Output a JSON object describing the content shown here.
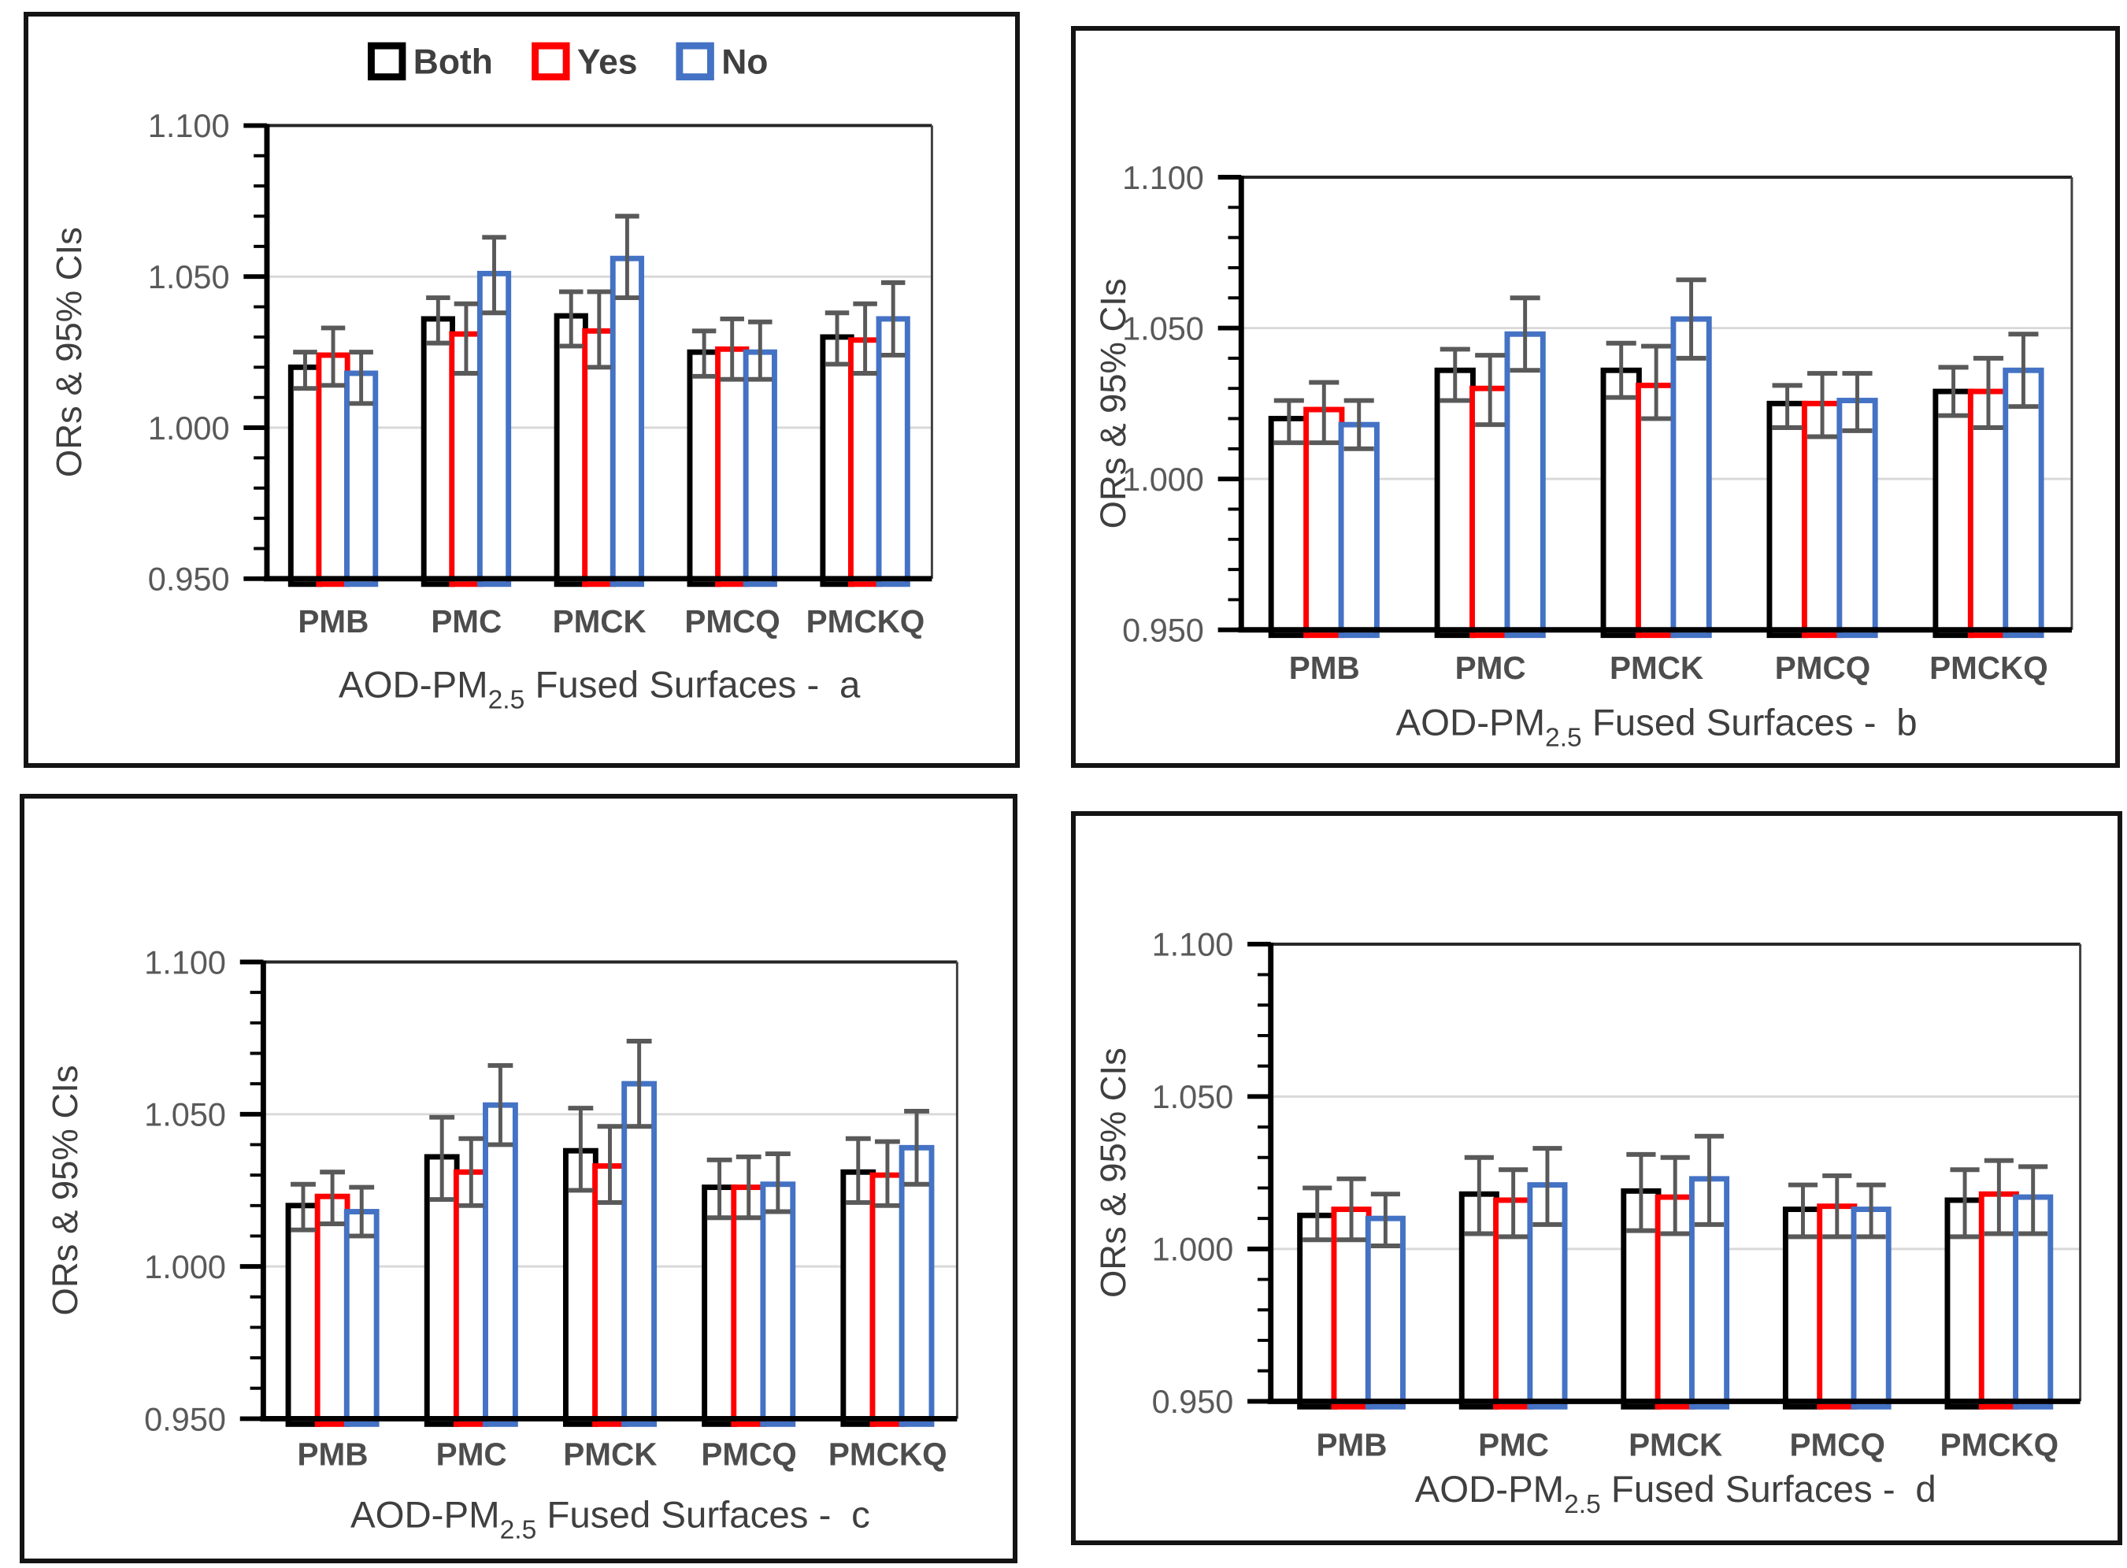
{
  "figure": {
    "ylabel": "ORs & 95% CIs",
    "xlabel_prefix": "AOD-PM",
    "xlabel_subscript": "2.5",
    "xlabel_suffix": "Fused Surfaces -",
    "categories": [
      "PMB",
      "PMC",
      "PMCK",
      "PMCQ",
      "PMCKQ"
    ],
    "ytick_labels": [
      "0.950",
      "1.000",
      "1.050",
      "1.100"
    ],
    "legend": {
      "entries": [
        {
          "label": "Both",
          "color": "#000000"
        },
        {
          "label": "Yes",
          "color": "#FF0000"
        },
        {
          "label": "No",
          "color": "#4472C4"
        }
      ]
    },
    "colors": {
      "both": "#000000",
      "yes": "#FF0000",
      "no": "#4472C4",
      "error_bar": "#595959",
      "gridline": "#D9D9D9",
      "tick_text": "#595959",
      "label_text": "#4d4d4d",
      "title_text": "#3f3f3f"
    }
  },
  "chart_data": [
    {
      "type": "bar",
      "panel_label": "a",
      "ylabel": "ORs & 95% CIs",
      "xlabel_prefix": "AOD-PM",
      "xlabel_subscript": "2.5",
      "xlabel_suffix": "Fused Surfaces -",
      "categories": [
        "PMB",
        "PMC",
        "PMCK",
        "PMCQ",
        "PMCKQ"
      ],
      "ylim": [
        0.95,
        1.1
      ],
      "yticks": [
        0.95,
        1.0,
        1.05,
        1.1
      ],
      "minor_tick_step": 0.01,
      "grid": true,
      "show_legend": true,
      "legend_position": "top",
      "series": [
        {
          "name": "Both",
          "color": "#000000",
          "values": [
            1.02,
            1.036,
            1.037,
            1.025,
            1.03
          ],
          "ci_low": [
            1.013,
            1.028,
            1.027,
            1.017,
            1.021
          ],
          "ci_high": [
            1.025,
            1.043,
            1.045,
            1.032,
            1.038
          ]
        },
        {
          "name": "Yes",
          "color": "#FF0000",
          "values": [
            1.024,
            1.031,
            1.032,
            1.026,
            1.029
          ],
          "ci_low": [
            1.014,
            1.018,
            1.02,
            1.016,
            1.018
          ],
          "ci_high": [
            1.033,
            1.041,
            1.045,
            1.036,
            1.041
          ]
        },
        {
          "name": "No",
          "color": "#4472C4",
          "values": [
            1.018,
            1.051,
            1.056,
            1.025,
            1.036
          ],
          "ci_low": [
            1.008,
            1.038,
            1.043,
            1.016,
            1.024
          ],
          "ci_high": [
            1.025,
            1.063,
            1.07,
            1.035,
            1.048
          ]
        }
      ]
    },
    {
      "type": "bar",
      "panel_label": "b",
      "ylabel": "ORs & 95% CIs",
      "xlabel_prefix": "AOD-PM",
      "xlabel_subscript": "2.5",
      "xlabel_suffix": "Fused Surfaces -",
      "categories": [
        "PMB",
        "PMC",
        "PMCK",
        "PMCQ",
        "PMCKQ"
      ],
      "ylim": [
        0.95,
        1.1
      ],
      "yticks": [
        0.95,
        1.0,
        1.05,
        1.1
      ],
      "minor_tick_step": 0.01,
      "grid": true,
      "show_legend": false,
      "series": [
        {
          "name": "Both",
          "color": "#000000",
          "values": [
            1.02,
            1.036,
            1.036,
            1.025,
            1.029
          ],
          "ci_low": [
            1.012,
            1.026,
            1.027,
            1.017,
            1.021
          ],
          "ci_high": [
            1.026,
            1.043,
            1.045,
            1.031,
            1.037
          ]
        },
        {
          "name": "Yes",
          "color": "#FF0000",
          "values": [
            1.023,
            1.03,
            1.031,
            1.025,
            1.029
          ],
          "ci_low": [
            1.012,
            1.018,
            1.02,
            1.014,
            1.017
          ],
          "ci_high": [
            1.032,
            1.041,
            1.044,
            1.035,
            1.04
          ]
        },
        {
          "name": "No",
          "color": "#4472C4",
          "values": [
            1.018,
            1.048,
            1.053,
            1.026,
            1.036
          ],
          "ci_low": [
            1.01,
            1.036,
            1.04,
            1.016,
            1.024
          ],
          "ci_high": [
            1.026,
            1.06,
            1.066,
            1.035,
            1.048
          ]
        }
      ]
    },
    {
      "type": "bar",
      "panel_label": "c",
      "ylabel": "ORs & 95% CIs",
      "xlabel_prefix": "AOD-PM",
      "xlabel_subscript": "2.5",
      "xlabel_suffix": "Fused Surfaces -",
      "categories": [
        "PMB",
        "PMC",
        "PMCK",
        "PMCQ",
        "PMCKQ"
      ],
      "ylim": [
        0.95,
        1.1
      ],
      "yticks": [
        0.95,
        1.0,
        1.05,
        1.1
      ],
      "minor_tick_step": 0.01,
      "grid": true,
      "show_legend": false,
      "series": [
        {
          "name": "Both",
          "color": "#000000",
          "values": [
            1.02,
            1.036,
            1.038,
            1.026,
            1.031
          ],
          "ci_low": [
            1.012,
            1.022,
            1.025,
            1.016,
            1.021
          ],
          "ci_high": [
            1.027,
            1.049,
            1.052,
            1.035,
            1.042
          ]
        },
        {
          "name": "Yes",
          "color": "#FF0000",
          "values": [
            1.023,
            1.031,
            1.033,
            1.026,
            1.03
          ],
          "ci_low": [
            1.014,
            1.02,
            1.021,
            1.016,
            1.02
          ],
          "ci_high": [
            1.031,
            1.042,
            1.046,
            1.036,
            1.041
          ]
        },
        {
          "name": "No",
          "color": "#4472C4",
          "values": [
            1.018,
            1.053,
            1.06,
            1.027,
            1.039
          ],
          "ci_low": [
            1.01,
            1.04,
            1.046,
            1.018,
            1.027
          ],
          "ci_high": [
            1.026,
            1.066,
            1.074,
            1.037,
            1.051
          ]
        }
      ]
    },
    {
      "type": "bar",
      "panel_label": "d",
      "ylabel": "ORs & 95% CIs",
      "xlabel_prefix": "AOD-PM",
      "xlabel_subscript": "2.5",
      "xlabel_suffix": "Fused Surfaces -",
      "categories": [
        "PMB",
        "PMC",
        "PMCK",
        "PMCQ",
        "PMCKQ"
      ],
      "ylim": [
        0.95,
        1.1
      ],
      "yticks": [
        0.95,
        1.0,
        1.05,
        1.1
      ],
      "minor_tick_step": 0.01,
      "grid": true,
      "show_legend": false,
      "series": [
        {
          "name": "Both",
          "color": "#000000",
          "values": [
            1.011,
            1.018,
            1.019,
            1.013,
            1.016
          ],
          "ci_low": [
            1.003,
            1.005,
            1.006,
            1.004,
            1.004
          ],
          "ci_high": [
            1.02,
            1.03,
            1.031,
            1.021,
            1.026
          ]
        },
        {
          "name": "Yes",
          "color": "#FF0000",
          "values": [
            1.013,
            1.016,
            1.017,
            1.014,
            1.018
          ],
          "ci_low": [
            1.003,
            1.004,
            1.005,
            1.004,
            1.005
          ],
          "ci_high": [
            1.023,
            1.026,
            1.03,
            1.024,
            1.029
          ]
        },
        {
          "name": "No",
          "color": "#4472C4",
          "values": [
            1.01,
            1.021,
            1.023,
            1.013,
            1.017
          ],
          "ci_low": [
            1.001,
            1.008,
            1.008,
            1.004,
            1.005
          ],
          "ci_high": [
            1.018,
            1.033,
            1.037,
            1.021,
            1.027
          ]
        }
      ]
    }
  ]
}
